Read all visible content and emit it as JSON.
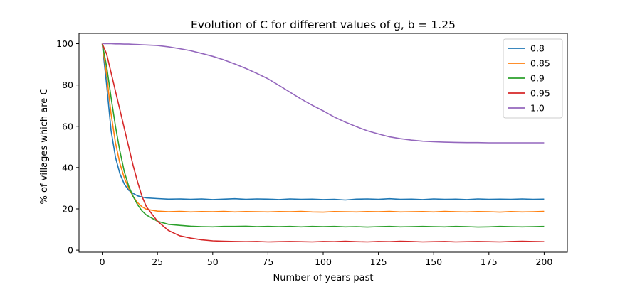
{
  "chart_data": {
    "type": "line",
    "title": "Evolution of C for different values of g, b = 1.25",
    "xlabel": "Number of years past",
    "ylabel": "% of villages which are C",
    "xlim": [
      -10.5,
      210.5
    ],
    "ylim": [
      -1,
      105
    ],
    "xticks": [
      0,
      25,
      50,
      75,
      100,
      125,
      150,
      175,
      200
    ],
    "yticks": [
      0,
      20,
      40,
      60,
      80,
      100
    ],
    "grid": false,
    "legend_position": "top-right",
    "x": [
      0,
      2,
      4,
      6,
      8,
      10,
      12,
      14,
      16,
      18,
      20,
      25,
      30,
      35,
      40,
      45,
      50,
      55,
      60,
      65,
      70,
      75,
      80,
      85,
      90,
      95,
      100,
      105,
      110,
      115,
      120,
      125,
      130,
      135,
      140,
      145,
      150,
      155,
      160,
      165,
      170,
      175,
      180,
      185,
      190,
      195,
      200
    ],
    "series": [
      {
        "name": "0.8",
        "color": "#1f77b4",
        "values": [
          100,
          80,
          58,
          45,
          37,
          32,
          29,
          27.5,
          26.3,
          25.7,
          25.3,
          25,
          24.7,
          24.8,
          24.6,
          24.8,
          24.5,
          24.7,
          24.9,
          24.6,
          24.8,
          24.7,
          24.5,
          24.8,
          24.6,
          24.7,
          24.5,
          24.6,
          24.3,
          24.7,
          24.8,
          24.6,
          24.9,
          24.6,
          24.7,
          24.5,
          24.8,
          24.6,
          24.7,
          24.5,
          24.8,
          24.6,
          24.7,
          24.6,
          24.8,
          24.6,
          24.7
        ]
      },
      {
        "name": "0.85",
        "color": "#ff7f0e",
        "values": [
          100,
          85,
          66,
          52,
          42,
          35,
          30,
          26,
          23,
          21,
          19.8,
          18.9,
          18.6,
          18.8,
          18.5,
          18.7,
          18.6,
          18.8,
          18.5,
          18.7,
          18.6,
          18.5,
          18.7,
          18.6,
          18.8,
          18.5,
          18.4,
          18.7,
          18.6,
          18.5,
          18.7,
          18.6,
          18.8,
          18.5,
          18.6,
          18.7,
          18.5,
          18.8,
          18.6,
          18.5,
          18.7,
          18.6,
          18.4,
          18.7,
          18.5,
          18.6,
          18.8
        ]
      },
      {
        "name": "0.9",
        "color": "#2ca02c",
        "values": [
          100,
          89,
          74,
          60,
          48,
          38,
          31,
          26,
          22,
          19,
          17,
          14,
          12.5,
          12,
          11.6,
          11.4,
          11.3,
          11.5,
          11.5,
          11.6,
          11.4,
          11.5,
          11.4,
          11.5,
          11.3,
          11.5,
          11.4,
          11.5,
          11.3,
          11.4,
          11.2,
          11.4,
          11.5,
          11.3,
          11.4,
          11.5,
          11.4,
          11.3,
          11.5,
          11.4,
          11.2,
          11.3,
          11.5,
          11.4,
          11.3,
          11.4,
          11.5
        ]
      },
      {
        "name": "0.95",
        "color": "#d62728",
        "values": [
          100,
          95,
          86,
          77,
          68,
          59,
          50,
          41,
          33,
          26,
          21,
          14,
          9.5,
          7,
          5.8,
          5,
          4.5,
          4.3,
          4.2,
          4.1,
          4.2,
          4.0,
          4.1,
          4.2,
          4.1,
          4.0,
          4.2,
          4.1,
          4.3,
          4.1,
          4.0,
          4.2,
          4.1,
          4.3,
          4.2,
          4.0,
          4.1,
          4.2,
          4.0,
          4.1,
          4.2,
          4.1,
          4.0,
          4.2,
          4.3,
          4.2,
          4.1
        ]
      },
      {
        "name": "1.0",
        "color": "#9467bd",
        "values": [
          100,
          100,
          100,
          99.9,
          99.9,
          99.8,
          99.8,
          99.7,
          99.6,
          99.5,
          99.4,
          99.1,
          98.5,
          97.6,
          96.6,
          95.3,
          93.9,
          92.2,
          90.2,
          88,
          85.6,
          83,
          79.8,
          76.5,
          73.2,
          70.2,
          67.5,
          64.5,
          62,
          59.8,
          57.8,
          56.3,
          54.9,
          54,
          53.3,
          52.8,
          52.5,
          52.3,
          52.2,
          52.1,
          52.1,
          52,
          52,
          52,
          52,
          52,
          52
        ]
      }
    ]
  }
}
